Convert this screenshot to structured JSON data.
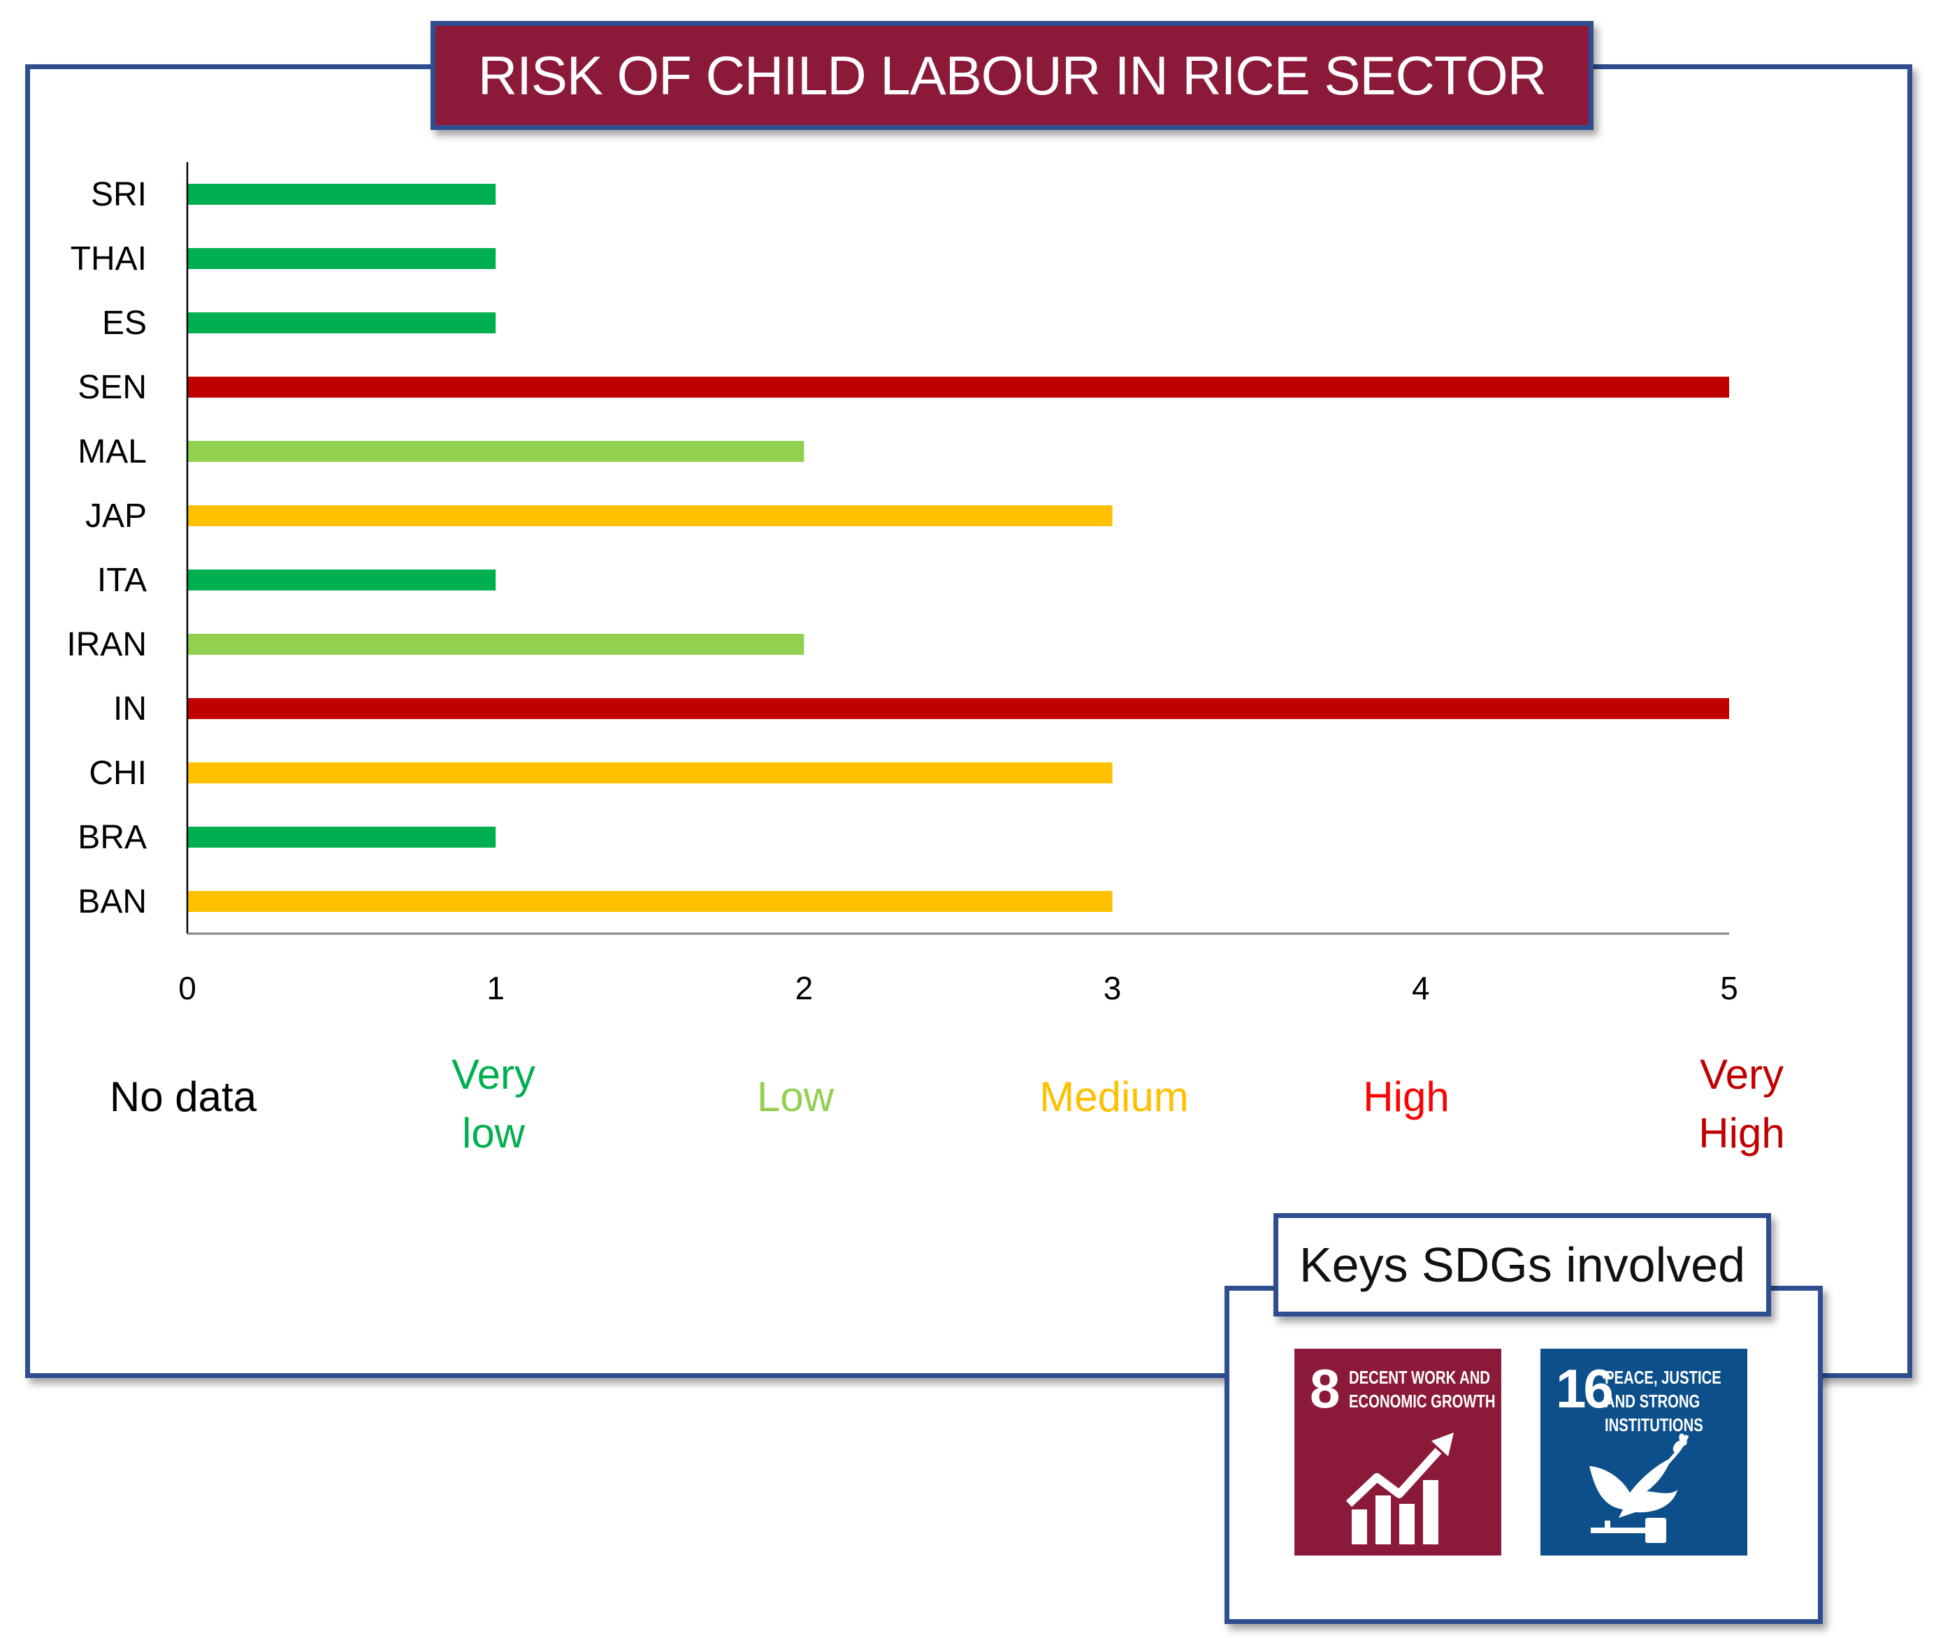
{
  "title": "RISK OF CHILD LABOUR IN RICE SECTOR",
  "chart_data": {
    "type": "bar",
    "orientation": "horizontal",
    "title": "RISK OF CHILD LABOUR IN RICE SECTOR",
    "categories": [
      "SRI",
      "THAI",
      "ES",
      "SEN",
      "MAL",
      "JAP",
      "ITA",
      "IRAN",
      "IN",
      "CHI",
      "BRA",
      "BAN"
    ],
    "values": [
      1,
      1,
      1,
      5,
      2,
      3,
      1,
      2,
      5,
      3,
      1,
      3
    ],
    "xlim": [
      0,
      5
    ],
    "xticks": [
      "0",
      "1",
      "2",
      "3",
      "4",
      "5"
    ],
    "xlabel": "",
    "ylabel": "",
    "grid": false,
    "risk_scale": [
      {
        "value": 0,
        "label": "No data",
        "color": "#000000"
      },
      {
        "value": 1,
        "label": "Very low",
        "color": "#00B050"
      },
      {
        "value": 2,
        "label": "Low",
        "color": "#92D050"
      },
      {
        "value": 3,
        "label": "Medium",
        "color": "#FFC000"
      },
      {
        "value": 4,
        "label": "High",
        "color": "#FF0000"
      },
      {
        "value": 5,
        "label": "Very High",
        "color": "#C00000"
      }
    ],
    "bar_colors": {
      "1": "#00B050",
      "2": "#92D050",
      "3": "#FFC000",
      "4": "#FF0000",
      "5": "#C00000"
    }
  },
  "sdg": {
    "header": "Keys SDGs involved",
    "goals": [
      {
        "number": "8",
        "text": "DECENT WORK AND\nECONOMIC GROWTH",
        "color": "#8B1A3A",
        "icon": "growth-chart-icon"
      },
      {
        "number": "16",
        "text": "PEACE, JUSTICE\nAND STRONG\nINSTITUTIONS",
        "color": "#0D4F8B",
        "icon": "dove-gavel-icon"
      }
    ]
  }
}
